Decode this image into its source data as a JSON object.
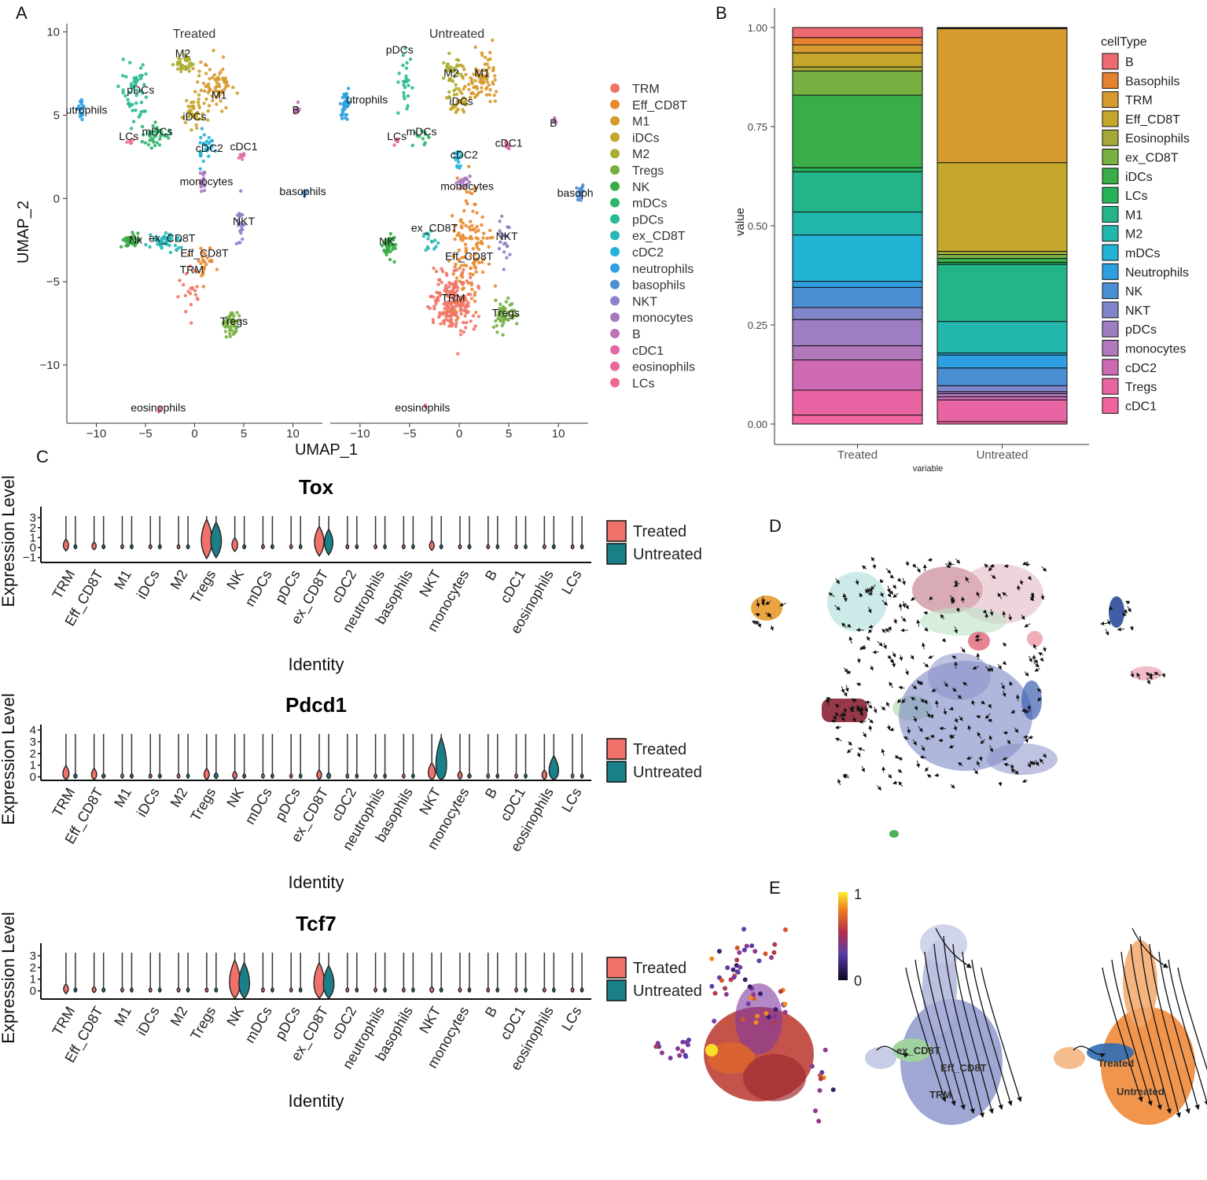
{
  "panels": {
    "a": "A",
    "b": "B",
    "c": "C",
    "d": "D",
    "e": "E"
  },
  "colors": {
    "treated": "#f0716a",
    "untreated": "#1a7f86"
  },
  "chart_data": [
    {
      "id": "umap",
      "type": "scatter",
      "facets": [
        "Treated",
        "Untreated"
      ],
      "xlabel": "UMAP_1",
      "ylabel": "UMAP_2",
      "xlim": [
        -13,
        13
      ],
      "ylim": [
        -13.5,
        10.5
      ],
      "xticks": [
        "-10",
        "-5",
        "0",
        "5",
        "10"
      ],
      "yticks": [
        "10",
        "5",
        "0",
        "-5",
        "-10"
      ],
      "legend": [
        {
          "name": "TRM",
          "color": "#ef7567"
        },
        {
          "name": "Eff_CD8T",
          "color": "#e98a2e"
        },
        {
          "name": "M1",
          "color": "#d69a2e"
        },
        {
          "name": "iDCs",
          "color": "#c4a62a"
        },
        {
          "name": "M2",
          "color": "#a8ad30"
        },
        {
          "name": "Tregs",
          "color": "#76b042"
        },
        {
          "name": "NK",
          "color": "#3aaa47"
        },
        {
          "name": "mDCs",
          "color": "#2db56b"
        },
        {
          "name": "pDCs",
          "color": "#28b995"
        },
        {
          "name": "ex_CD8T",
          "color": "#27b8b5"
        },
        {
          "name": "cDC2",
          "color": "#22b2d8"
        },
        {
          "name": "neutrophils",
          "color": "#2ea0e0"
        },
        {
          "name": "basophils",
          "color": "#4c8fd3"
        },
        {
          "name": "NKT",
          "color": "#8a83c8"
        },
        {
          "name": "monocytes",
          "color": "#a677bd"
        },
        {
          "name": "B",
          "color": "#c070b5"
        },
        {
          "name": "cDC1",
          "color": "#e06aa3"
        },
        {
          "name": "eosinophils",
          "color": "#ea659a"
        },
        {
          "name": "LCs",
          "color": "#ee6a8d"
        }
      ],
      "treated_labels": [
        {
          "name": "M2",
          "x": -1.2,
          "y": 8.5
        },
        {
          "name": "M1",
          "x": 2.5,
          "y": 6
        },
        {
          "name": "pDCs",
          "x": -5.5,
          "y": 6.3
        },
        {
          "name": "iDCs",
          "x": 0,
          "y": 4.7
        },
        {
          "name": "utrophils",
          "x": -11,
          "y": 5.1
        },
        {
          "name": "mDCs",
          "x": -3.8,
          "y": 3.8
        },
        {
          "name": "LCs",
          "x": -6.7,
          "y": 3.5
        },
        {
          "name": "cDC2",
          "x": 1.5,
          "y": 2.8
        },
        {
          "name": "cDC1",
          "x": 5,
          "y": 2.9
        },
        {
          "name": "B",
          "x": 10.3,
          "y": 5.1
        },
        {
          "name": "monocytes",
          "x": 1.2,
          "y": 0.8
        },
        {
          "name": "basophils",
          "x": 11,
          "y": 0.2
        },
        {
          "name": "NKT",
          "x": 5,
          "y": -1.6
        },
        {
          "name": "Nk",
          "x": -6,
          "y": -2.7
        },
        {
          "name": "ex_CD8T",
          "x": -2.3,
          "y": -2.6
        },
        {
          "name": "Eff_CD8T",
          "x": 1,
          "y": -3.5
        },
        {
          "name": "TRM",
          "x": -0.3,
          "y": -4.5
        },
        {
          "name": "Tregs",
          "x": 4,
          "y": -7.6
        },
        {
          "name": "eosinophils",
          "x": -3.7,
          "y": -12.8
        }
      ],
      "untreated_labels": [
        {
          "name": "pDCs",
          "x": -6,
          "y": 8.7
        },
        {
          "name": "M2",
          "x": -0.8,
          "y": 7.3
        },
        {
          "name": "M1",
          "x": 2.3,
          "y": 7.3
        },
        {
          "name": "utrophils",
          "x": -9.3,
          "y": 5.7
        },
        {
          "name": "iDCs",
          "x": 0.2,
          "y": 5.6
        },
        {
          "name": "B",
          "x": 9.5,
          "y": 4.3
        },
        {
          "name": "LCs",
          "x": -6.3,
          "y": 3.5
        },
        {
          "name": "mDCs",
          "x": -3.8,
          "y": 3.8
        },
        {
          "name": "cDC1",
          "x": 5,
          "y": 3.1
        },
        {
          "name": "cDC2",
          "x": 0.5,
          "y": 2.4
        },
        {
          "name": "monocytes",
          "x": 0.8,
          "y": 0.5
        },
        {
          "name": "basoph",
          "x": 11.7,
          "y": 0.1
        },
        {
          "name": "ex_CD8T",
          "x": -2.5,
          "y": -2
        },
        {
          "name": "NKT",
          "x": 4.8,
          "y": -2.5
        },
        {
          "name": "NK",
          "x": -7.3,
          "y": -2.8
        },
        {
          "name": "Eff_CD8T",
          "x": 1,
          "y": -3.7
        },
        {
          "name": "TRM",
          "x": -0.6,
          "y": -6.2
        },
        {
          "name": "Tregs",
          "x": 4.7,
          "y": -7.1
        },
        {
          "name": "eosinophils",
          "x": -3.7,
          "y": -12.8
        }
      ]
    },
    {
      "id": "composition",
      "type": "bar",
      "stacked": true,
      "categories": [
        "Treated",
        "Untreated"
      ],
      "xlabel": "variable",
      "ylabel": "value",
      "ylim": [
        0,
        1
      ],
      "yticks": [
        "0.00",
        "0.25",
        "0.50",
        "0.75",
        "1.00"
      ],
      "legend_title": "cellType",
      "series": [
        {
          "name": "B",
          "color": "#ee6a72",
          "values": [
            0.025,
            0.001
          ]
        },
        {
          "name": "Basophils",
          "color": "#e5822f",
          "values": [
            0.018,
            0.002
          ]
        },
        {
          "name": "TRM",
          "color": "#d69a2e",
          "values": [
            0.02,
            0.34
          ]
        },
        {
          "name": "Eff_CD8T",
          "color": "#c4a62a",
          "values": [
            0.035,
            0.225
          ]
        },
        {
          "name": "Eosinophils",
          "color": "#a5a836",
          "values": [
            0.01,
            0.008
          ]
        },
        {
          "name": "ex_CD8T",
          "color": "#78b042",
          "values": [
            0.06,
            0.01
          ]
        },
        {
          "name": "iDCs",
          "color": "#39ad48",
          "values": [
            0.18,
            0.01
          ]
        },
        {
          "name": "LCs",
          "color": "#26b358",
          "values": [
            0.01,
            0.005
          ]
        },
        {
          "name": "M1",
          "color": "#24b48a",
          "values": [
            0.1,
            0.145
          ]
        },
        {
          "name": "M2",
          "color": "#22b6ad",
          "values": [
            0.057,
            0.08
          ]
        },
        {
          "name": "mDCs",
          "color": "#23b3d5",
          "values": [
            0.115,
            0.005
          ]
        },
        {
          "name": "Neutrophils",
          "color": "#2ea0e2",
          "values": [
            0.015,
            0.033
          ]
        },
        {
          "name": "NK",
          "color": "#4a8ed4",
          "values": [
            0.05,
            0.045
          ]
        },
        {
          "name": "NKT",
          "color": "#7f86ca",
          "values": [
            0.03,
            0.015
          ]
        },
        {
          "name": "pDCs",
          "color": "#9e7ec2",
          "values": [
            0.065,
            0.005
          ]
        },
        {
          "name": "monocytes",
          "color": "#b278bc",
          "values": [
            0.035,
            0.008
          ]
        },
        {
          "name": "cDC2",
          "color": "#ce6ab3",
          "values": [
            0.075,
            0.008
          ]
        },
        {
          "name": "Tregs",
          "color": "#e864a3",
          "values": [
            0.062,
            0.055
          ]
        },
        {
          "name": "cDC1",
          "color": "#f065a0",
          "values": [
            0.022,
            0.006
          ]
        }
      ]
    },
    {
      "id": "violins",
      "type": "violin",
      "categories": [
        "TRM",
        "Eff_CD8T",
        "M1",
        "iDCs",
        "M2",
        "Tregs",
        "NK",
        "mDCs",
        "pDCs",
        "ex_CD8T",
        "cDC2",
        "neutrophils",
        "basophils",
        "NKT",
        "monocytes",
        "B",
        "cDC1",
        "eosinophils",
        "LCs"
      ],
      "xlabel": "Identity",
      "ylabel": "Expression Level",
      "legend": [
        "Treated",
        "Untreated"
      ],
      "genes": [
        {
          "title": "Tox",
          "ymin": -1.5,
          "ymax": 3.8,
          "yticks": [
            "3",
            "2",
            "1",
            "0",
            "-1"
          ],
          "treated": [
            0.6,
            0.4,
            0.1,
            0.1,
            0.1,
            2.0,
            0.7,
            0.1,
            0.05,
            1.5,
            0.1,
            0.1,
            0.1,
            0.5,
            0.1,
            0.1,
            0.1,
            0.1,
            0.1
          ],
          "untreated": [
            0.1,
            0.1,
            0.1,
            0.1,
            0.1,
            1.8,
            0.1,
            0.1,
            0.05,
            1.3,
            0.05,
            0.05,
            0.05,
            0.1,
            0.1,
            0.05,
            0.05,
            0.1,
            0.05
          ]
        },
        {
          "title": "Pdcd1",
          "ymin": -0.3,
          "ymax": 4.2,
          "yticks": [
            "4",
            "3",
            "2",
            "1",
            "0"
          ],
          "treated": [
            0.8,
            0.6,
            0.1,
            0.1,
            0.1,
            0.6,
            0.4,
            0.1,
            0.05,
            0.5,
            0.1,
            0.05,
            0.05,
            1.0,
            0.4,
            0.1,
            0.1,
            0.5,
            0.05
          ],
          "untreated": [
            0.2,
            0.2,
            0.1,
            0.1,
            0.05,
            0.3,
            0.1,
            0.05,
            0.05,
            0.3,
            0.05,
            0.05,
            0.05,
            2.8,
            0.2,
            0.05,
            0.05,
            1.5,
            0.05
          ]
        },
        {
          "title": "Tcf7",
          "ymin": -0.7,
          "ymax": 3.8,
          "yticks": [
            "3",
            "2",
            "1",
            "0"
          ],
          "treated": [
            0.5,
            0.3,
            0.1,
            0.1,
            0.1,
            0.1,
            2.2,
            0.1,
            0.05,
            2.0,
            0.1,
            0.05,
            0.05,
            0.3,
            0.1,
            0.05,
            0.05,
            0.1,
            0.1
          ],
          "untreated": [
            0.1,
            0.1,
            0.05,
            0.05,
            0.05,
            0.1,
            2.0,
            0.05,
            0.05,
            1.8,
            0.05,
            0.05,
            0.05,
            0.1,
            0.05,
            0.05,
            0.05,
            0.05,
            0.05
          ]
        }
      ]
    },
    {
      "id": "pseudotime",
      "type": "scatter",
      "colorbar_max": "1",
      "colorbar_min": "0",
      "labels_mid": [
        "ex_CD8T",
        "Eff_CD8T",
        "TRM"
      ],
      "labels_right": [
        "Treated",
        "Untreated"
      ]
    }
  ]
}
